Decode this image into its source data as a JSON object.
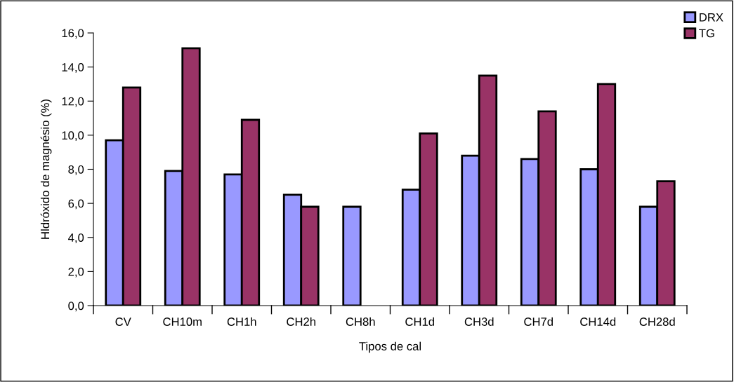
{
  "chart_data": {
    "type": "bar",
    "xlabel": "Tipos de cal",
    "ylabel": "Hldróxido de magnésio (%)",
    "categories": [
      "CV",
      "CH10m",
      "CH1h",
      "CH2h",
      "CH8h",
      "CH1d",
      "CH3d",
      "CH7d",
      "CH14d",
      "CH28d"
    ],
    "series": [
      {
        "name": "DRX",
        "color": "#9999ff",
        "values": [
          9.7,
          7.9,
          7.7,
          6.5,
          5.8,
          6.8,
          8.8,
          8.6,
          8.0,
          5.8
        ]
      },
      {
        "name": "TG",
        "color": "#993366",
        "values": [
          12.8,
          15.1,
          10.9,
          5.8,
          null,
          10.1,
          13.5,
          11.4,
          13.0,
          7.3
        ]
      }
    ],
    "ylim": [
      0,
      16
    ],
    "yticks": [
      {
        "value": 0,
        "label": "0,0"
      },
      {
        "value": 2,
        "label": "2,0"
      },
      {
        "value": 4,
        "label": "4,0"
      },
      {
        "value": 6,
        "label": "6,0"
      },
      {
        "value": 8,
        "label": "8,0"
      },
      {
        "value": 10,
        "label": "10,0"
      },
      {
        "value": 12,
        "label": "12,0"
      },
      {
        "value": 14,
        "label": "14,0"
      },
      {
        "value": 16,
        "label": "16,0"
      }
    ],
    "grid": false,
    "legend": "top right"
  }
}
